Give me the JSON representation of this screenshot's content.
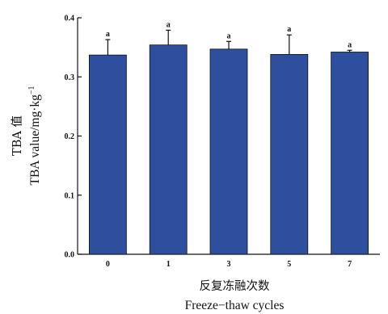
{
  "chart_data": {
    "type": "bar",
    "categories": [
      "0",
      "1",
      "3",
      "5",
      "7"
    ],
    "values": [
      0.337,
      0.354,
      0.347,
      0.338,
      0.342
    ],
    "errors": [
      0.026,
      0.025,
      0.013,
      0.033,
      0.003
    ],
    "significance": [
      "a",
      "a",
      "a",
      "a",
      "a"
    ],
    "ylim": [
      0,
      0.4
    ],
    "yticks": [
      "0.0",
      "0.1",
      "0.2",
      "0.3",
      "0.4"
    ],
    "ylabel_line1": "TBA 值",
    "ylabel_line2": "TBA  value/mg·kg",
    "ylabel_superscript": "−1",
    "xlabel_line1": "反复冻融次数",
    "xlabel_line2": "Freeze−thaw  cycles",
    "bar_color": "#2d4f9e",
    "grid": false
  }
}
